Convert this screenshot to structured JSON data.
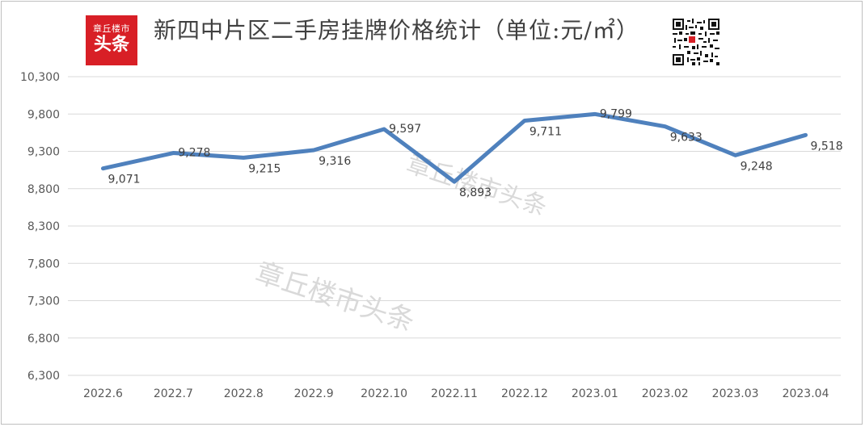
{
  "title": "新四中片区二手房挂牌价格统计（单位:元/㎡）",
  "logo": {
    "top_text": "章丘楼市",
    "main_text": "头条"
  },
  "watermark": "章丘楼市头条",
  "qr_icon": "qr-code-icon",
  "colors": {
    "line": "#4f81bd",
    "logo_bg": "#d81f26",
    "grid": "#d9d9d9"
  },
  "chart_data": {
    "type": "line",
    "title": "新四中片区二手房挂牌价格统计（单位:元/㎡）",
    "xlabel": "",
    "ylabel": "",
    "categories": [
      "2022.6",
      "2022.7",
      "2022.8",
      "2022.9",
      "2022.10",
      "2022.11",
      "2022.12",
      "2023.01",
      "2023.02",
      "2023.03",
      "2023.04"
    ],
    "values": [
      9071,
      9278,
      9215,
      9316,
      9597,
      8893,
      9711,
      9799,
      9633,
      9248,
      9518
    ],
    "value_labels": [
      "9,071",
      "9,278",
      "9,215",
      "9,316",
      "9,597",
      "8,893",
      "9,711",
      "9,799",
      "9,633",
      "9,248",
      "9,518"
    ],
    "yticks": [
      6300,
      6800,
      7300,
      7800,
      8300,
      8800,
      9300,
      9800,
      10300
    ],
    "ytick_labels": [
      "6,300",
      "6,800",
      "7,300",
      "7,800",
      "8,300",
      "8,800",
      "9,300",
      "9,800",
      "10,300"
    ],
    "ylim": [
      6300,
      10300
    ],
    "grid": true,
    "legend": "none"
  }
}
